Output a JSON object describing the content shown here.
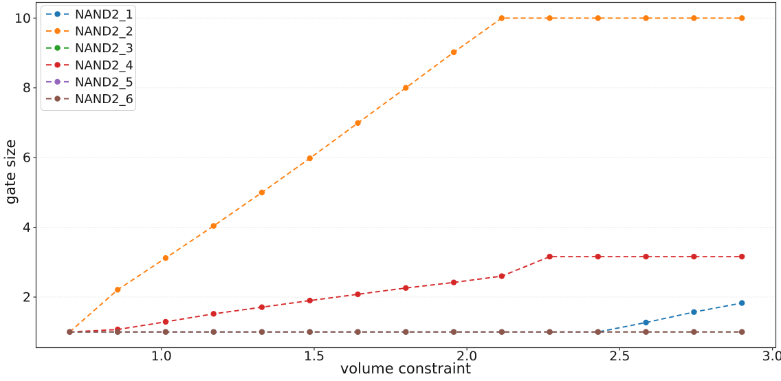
{
  "chart_data": {
    "type": "line",
    "title": "",
    "xlabel": "volume constraint",
    "ylabel": "gate size",
    "line_style": "dashed",
    "marker": "circle",
    "grid": "horizontal",
    "grid_color": "#ededed",
    "spine_color": "#2b2b2b",
    "legend_location": "upper left",
    "xlim": [
      0.59,
      3.011
    ],
    "ylim": [
      0.55,
      10.45
    ],
    "xticks": [
      1.0,
      1.5,
      2.0,
      2.5,
      3.0
    ],
    "xtick_labels": [
      "1.0",
      "1.5",
      "2.0",
      "2.5",
      "3.0"
    ],
    "yticks": [
      2,
      4,
      6,
      8,
      10
    ],
    "ytick_labels": [
      "2",
      "4",
      "6",
      "8",
      "10"
    ],
    "x": [
      0.7,
      0.857,
      1.014,
      1.171,
      1.329,
      1.486,
      1.643,
      1.8,
      1.957,
      2.114,
      2.271,
      2.429,
      2.586,
      2.743,
      2.9
    ],
    "series": [
      {
        "name": "NAND2_1",
        "color": "#1f77b4",
        "values": [
          1.0,
          1.0,
          1.0,
          1.0,
          1.0,
          1.0,
          1.0,
          1.0,
          1.0,
          1.0,
          1.0,
          1.0,
          1.27,
          1.57,
          1.83
        ]
      },
      {
        "name": "NAND2_2",
        "color": "#ff7f0e",
        "values": [
          1.0,
          2.21,
          3.12,
          4.04,
          5.0,
          5.98,
          6.99,
          8.0,
          9.02,
          10.0,
          10.0,
          10.0,
          10.0,
          10.0,
          10.0
        ]
      },
      {
        "name": "NAND2_3",
        "color": "#2ca02c",
        "values": [
          1.0,
          1.0,
          1.0,
          1.0,
          1.0,
          1.0,
          1.0,
          1.0,
          1.0,
          1.0,
          1.0,
          1.0,
          1.0,
          1.0,
          1.0
        ]
      },
      {
        "name": "NAND2_4",
        "color": "#d62728",
        "values": [
          1.0,
          1.07,
          1.29,
          1.52,
          1.71,
          1.9,
          2.08,
          2.26,
          2.42,
          2.6,
          3.16,
          3.16,
          3.16,
          3.16,
          3.16
        ]
      },
      {
        "name": "NAND2_5",
        "color": "#9467bd",
        "values": [
          1.0,
          1.0,
          1.0,
          1.0,
          1.0,
          1.0,
          1.0,
          1.0,
          1.0,
          1.0,
          1.0,
          1.0,
          1.0,
          1.0,
          1.0
        ]
      },
      {
        "name": "NAND2_6",
        "color": "#8c564b",
        "values": [
          1.0,
          1.0,
          1.0,
          1.0,
          1.0,
          1.0,
          1.0,
          1.0,
          1.0,
          1.0,
          1.0,
          1.0,
          1.0,
          1.0,
          1.0
        ]
      }
    ]
  }
}
